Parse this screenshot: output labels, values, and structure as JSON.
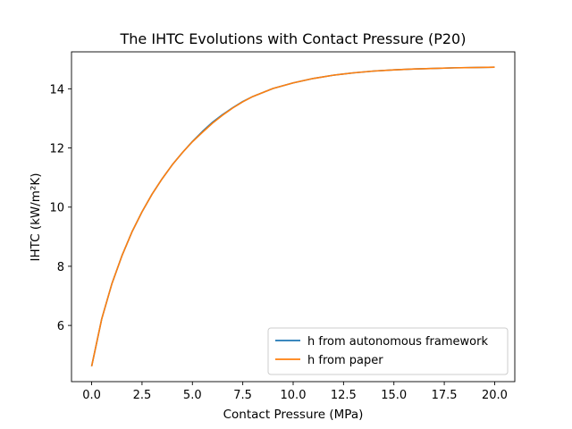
{
  "chart_data": {
    "type": "line",
    "title": "The IHTC Evolutions with Contact Pressure (P20)",
    "xlabel": "Contact Pressure (MPa)",
    "ylabel": "IHTC (kW/m²K)",
    "xlim": [
      -1.0,
      21.0
    ],
    "ylim": [
      4.1,
      15.25
    ],
    "xticks": [
      0.0,
      2.5,
      5.0,
      7.5,
      10.0,
      12.5,
      15.0,
      17.5,
      20.0
    ],
    "xtick_labels": [
      "0.0",
      "2.5",
      "5.0",
      "7.5",
      "10.0",
      "12.5",
      "15.0",
      "17.5",
      "20.0"
    ],
    "yticks": [
      6,
      8,
      10,
      12,
      14
    ],
    "ytick_labels": [
      "6",
      "8",
      "10",
      "12",
      "14"
    ],
    "grid": false,
    "legend_position": "lower-right",
    "x": [
      0,
      0.5,
      1,
      1.5,
      2,
      2.5,
      3,
      3.5,
      4,
      4.5,
      5,
      5.5,
      6,
      6.5,
      7,
      7.5,
      8,
      9,
      10,
      11,
      12,
      13,
      14,
      15,
      16,
      17,
      18,
      19,
      20
    ],
    "series": [
      {
        "name": "h from autonomous framework",
        "color": "#1f77b4",
        "values": [
          4.62,
          6.22,
          7.4,
          8.35,
          9.16,
          9.84,
          10.44,
          10.96,
          11.43,
          11.84,
          12.22,
          12.56,
          12.87,
          13.13,
          13.36,
          13.57,
          13.74,
          14.01,
          14.2,
          14.35,
          14.46,
          14.54,
          14.6,
          14.64,
          14.67,
          14.69,
          14.71,
          14.72,
          14.73
        ]
      },
      {
        "name": "h from paper",
        "color": "#ff7f0e",
        "values": [
          4.62,
          6.22,
          7.4,
          8.35,
          9.16,
          9.84,
          10.44,
          10.96,
          11.43,
          11.84,
          12.21,
          12.53,
          12.84,
          13.11,
          13.35,
          13.56,
          13.74,
          14.01,
          14.2,
          14.35,
          14.46,
          14.54,
          14.6,
          14.64,
          14.67,
          14.69,
          14.71,
          14.72,
          14.73
        ]
      }
    ]
  }
}
